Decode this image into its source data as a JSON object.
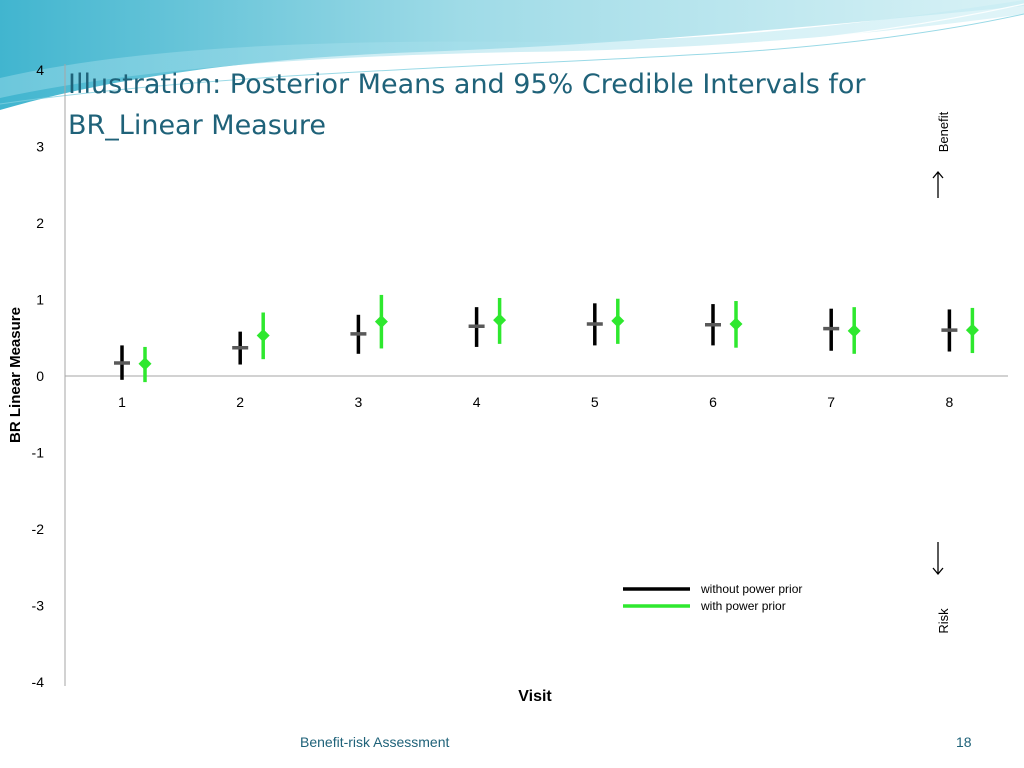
{
  "slide": {
    "title": "Illustration: Posterior Means and 95% Credible Intervals for BR_Linear Measure",
    "footer": "Benefit-risk Assessment",
    "page_number": "18",
    "accent_color": "#1f6279"
  },
  "chart_data": {
    "type": "error-bar",
    "xlabel": "Visit",
    "ylabel": "BR Linear Measure",
    "categories": [
      "1",
      "2",
      "3",
      "4",
      "5",
      "6",
      "7",
      "8"
    ],
    "ylim": [
      -4,
      4
    ],
    "yticks": [
      "4",
      "3",
      "2",
      "1",
      "0",
      "-1",
      "-2",
      "-3",
      "-4"
    ],
    "grid": false,
    "legend_position": "bottom-right",
    "direction_labels": {
      "up": "Benefit",
      "down": "Risk"
    },
    "series": [
      {
        "name": "without power prior",
        "color": "#000000",
        "mean_color": "#595959",
        "marker": "dash",
        "mean": [
          0.17,
          0.37,
          0.55,
          0.65,
          0.68,
          0.67,
          0.62,
          0.6
        ],
        "lower": [
          -0.05,
          0.15,
          0.29,
          0.38,
          0.4,
          0.4,
          0.33,
          0.32
        ],
        "upper": [
          0.4,
          0.58,
          0.8,
          0.9,
          0.95,
          0.94,
          0.88,
          0.87
        ]
      },
      {
        "name": "with power prior",
        "color": "#2ee82e",
        "mean_color": "#2ee82e",
        "marker": "diamond",
        "mean": [
          0.16,
          0.53,
          0.71,
          0.73,
          0.72,
          0.68,
          0.59,
          0.6
        ],
        "lower": [
          -0.08,
          0.22,
          0.36,
          0.42,
          0.42,
          0.37,
          0.29,
          0.3
        ],
        "upper": [
          0.38,
          0.83,
          1.06,
          1.02,
          1.01,
          0.98,
          0.9,
          0.89
        ]
      }
    ]
  }
}
